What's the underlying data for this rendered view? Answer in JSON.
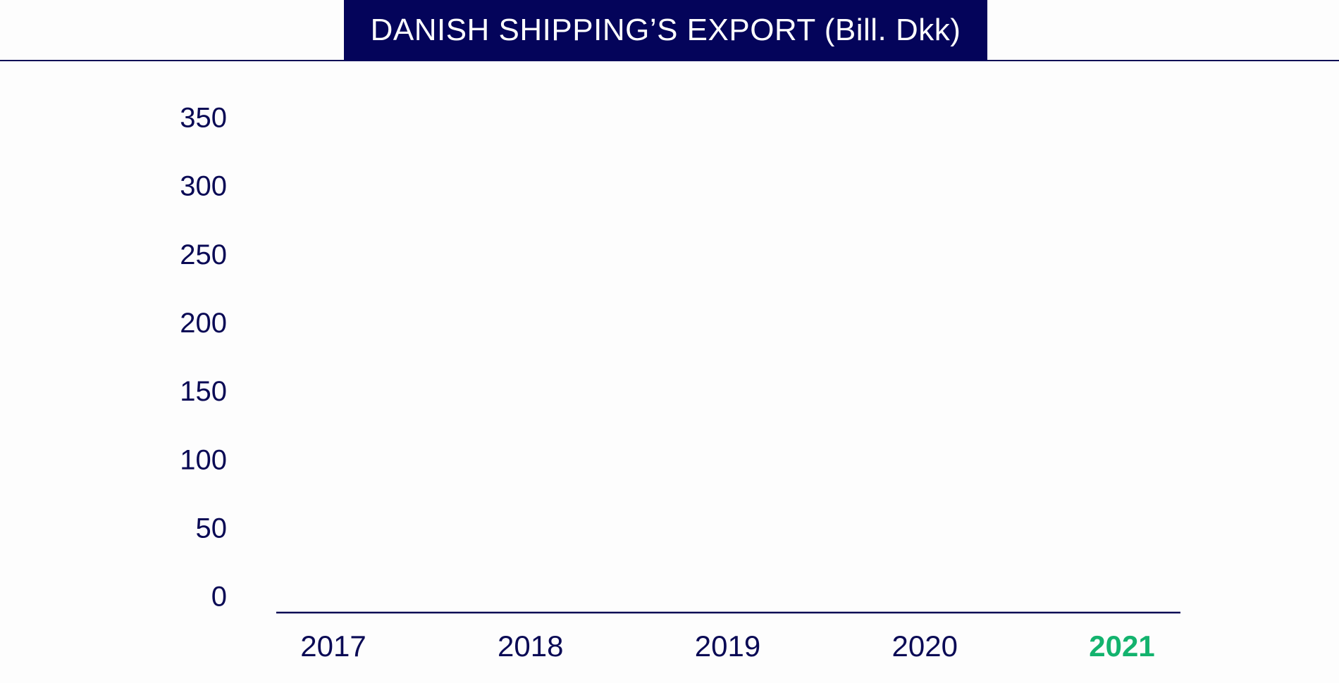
{
  "chart_data": {
    "type": "bar",
    "title": "DANISH SHIPPING’S EXPORT (Bill. Dkk)",
    "categories": [
      "2017",
      "2018",
      "2019",
      "2020",
      "2021"
    ],
    "values": [
      null,
      null,
      null,
      null,
      null
    ],
    "ylim": [
      0,
      350
    ],
    "yticks": [
      "0",
      "50",
      "100",
      "150",
      "200",
      "250",
      "300",
      "350"
    ],
    "highlighted_category": "2021",
    "grid": false,
    "colors": {
      "axis_text": "#0a0a55",
      "title_background": "#04045a",
      "title_text": "#ffffff",
      "highlight": "#13b36e"
    }
  }
}
